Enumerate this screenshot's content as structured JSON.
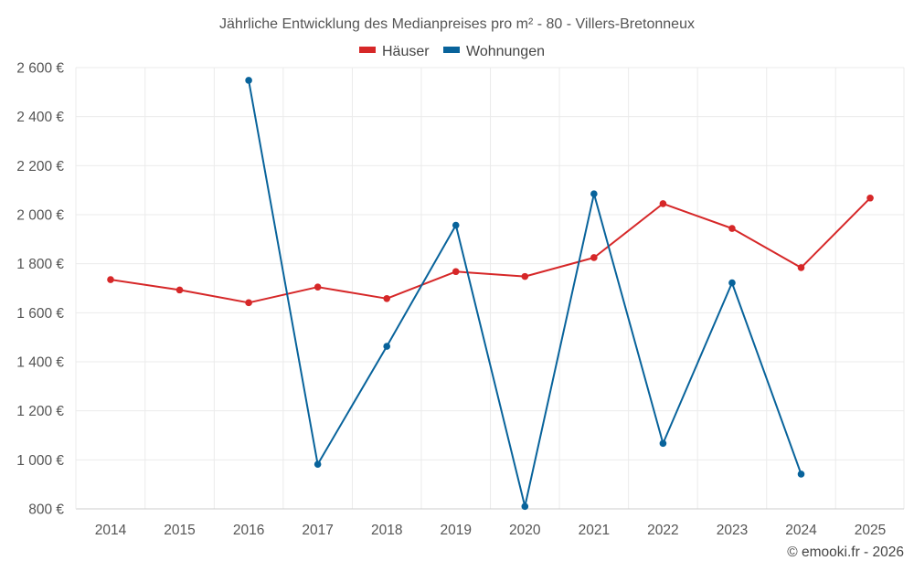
{
  "chart_data": {
    "type": "line",
    "title": "Jährliche Entwicklung des Medianpreises pro m² - 80 - Villers-Bretonneux",
    "categories": [
      "2014",
      "2015",
      "2016",
      "2017",
      "2018",
      "2019",
      "2020",
      "2021",
      "2022",
      "2023",
      "2024",
      "2025"
    ],
    "series": [
      {
        "name": "Häuser",
        "color": "#d62728",
        "values": [
          1735,
          1693,
          1641,
          1705,
          1658,
          1768,
          1748,
          1825,
          2045,
          1944,
          1784,
          2068
        ]
      },
      {
        "name": "Wohnungen",
        "color": "#08639b",
        "values": [
          null,
          null,
          2548,
          982,
          1463,
          1957,
          810,
          2085,
          1067,
          1722,
          942,
          null
        ]
      }
    ],
    "y_ticks": [
      800,
      1000,
      1200,
      1400,
      1600,
      1800,
      2000,
      2200,
      2400,
      2600
    ],
    "y_tick_labels": [
      "800 €",
      "1 000 €",
      "1 200 €",
      "1 400 €",
      "1 600 €",
      "1 800 €",
      "2 000 €",
      "2 200 €",
      "2 400 €",
      "2 600 €"
    ],
    "ylim": [
      800,
      2600
    ],
    "xlabel": "",
    "ylabel": "",
    "grid": true,
    "legend_position": "top-center"
  },
  "credit": "© emooki.fr - 2026"
}
